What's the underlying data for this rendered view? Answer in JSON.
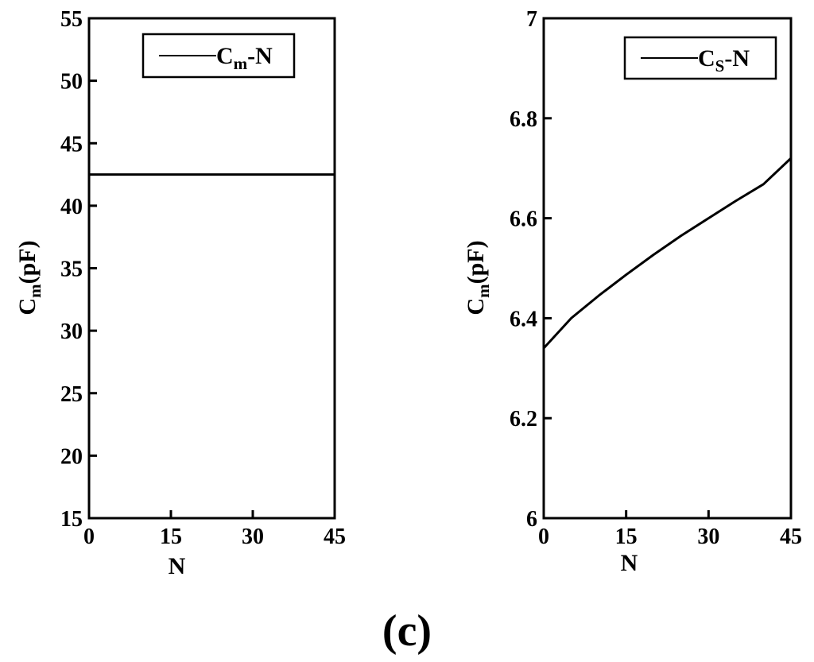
{
  "figure_label": "(c)",
  "chart_data": [
    {
      "type": "line",
      "xlabel": "N",
      "ylabel": "Cm(pF)",
      "ylabel_main": "C",
      "ylabel_sub": "m",
      "ylabel_rest": "(pF)",
      "xlim": [
        0,
        45
      ],
      "ylim": [
        15,
        55
      ],
      "xticks": [
        0,
        15,
        30,
        45
      ],
      "yticks": [
        15,
        20,
        25,
        30,
        35,
        40,
        45,
        50,
        55
      ],
      "grid": false,
      "legend": {
        "position": "top-right",
        "label": "Cm-N",
        "main": "C",
        "sub": "m",
        "rest": "-N"
      },
      "series": [
        {
          "name": "Cm-N",
          "x": [
            0,
            5,
            10,
            15,
            20,
            25,
            30,
            35,
            40,
            45
          ],
          "values": [
            42.5,
            42.5,
            42.5,
            42.5,
            42.5,
            42.5,
            42.5,
            42.5,
            42.5,
            42.5
          ],
          "color": "#000000"
        }
      ]
    },
    {
      "type": "line",
      "xlabel": "N",
      "ylabel": "Cm(pF)",
      "ylabel_main": "C",
      "ylabel_sub": "m",
      "ylabel_rest": "(pF)",
      "xlim": [
        0,
        45
      ],
      "ylim": [
        6,
        7
      ],
      "xticks": [
        0,
        15,
        30,
        45
      ],
      "yticks": [
        6,
        6.2,
        6.4,
        6.6,
        6.8,
        7
      ],
      "ytick_labels": [
        "6",
        "6.2",
        "6.4",
        "6.6",
        "6.8",
        "7"
      ],
      "grid": false,
      "legend": {
        "position": "top-right",
        "label": "CS-N",
        "main": "C",
        "sub": "S",
        "rest": "-N"
      },
      "series": [
        {
          "name": "CS-N",
          "x": [
            0,
            5,
            10,
            15,
            20,
            25,
            30,
            35,
            40,
            45
          ],
          "values": [
            6.34,
            6.4,
            6.445,
            6.487,
            6.527,
            6.565,
            6.6,
            6.635,
            6.668,
            6.72
          ],
          "color": "#000000"
        }
      ]
    }
  ]
}
